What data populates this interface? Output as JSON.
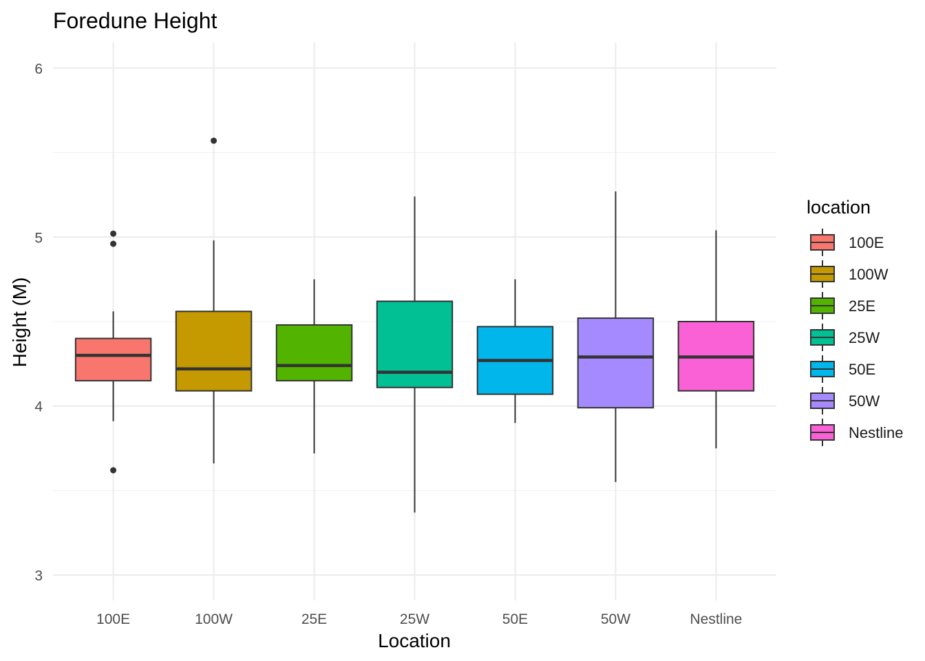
{
  "chart_data": {
    "type": "box",
    "title": "Foredune Height",
    "xlabel": "Location",
    "ylabel": "Height (M)",
    "ylim": [
      2.85,
      6.15
    ],
    "yticks": [
      3,
      4,
      5,
      6
    ],
    "grid": true,
    "legend": {
      "title": "location",
      "position": "right"
    },
    "categories": [
      "100E",
      "100W",
      "25E",
      "25W",
      "50E",
      "50W",
      "Nestline"
    ],
    "colors": [
      "#F8766D",
      "#C49A00",
      "#53B400",
      "#00C094",
      "#00B6EB",
      "#A58AFF",
      "#FB61D7"
    ],
    "boxes": [
      {
        "category": "100E",
        "lower_whisker": 3.91,
        "q1": 4.15,
        "median": 4.3,
        "q3": 4.4,
        "upper_whisker": 4.56,
        "outliers": [
          3.62,
          4.96,
          5.02
        ]
      },
      {
        "category": "100W",
        "lower_whisker": 3.66,
        "q1": 4.09,
        "median": 4.22,
        "q3": 4.56,
        "upper_whisker": 4.98,
        "outliers": [
          5.57
        ]
      },
      {
        "category": "25E",
        "lower_whisker": 3.72,
        "q1": 4.15,
        "median": 4.24,
        "q3": 4.48,
        "upper_whisker": 4.75,
        "outliers": []
      },
      {
        "category": "25W",
        "lower_whisker": 3.37,
        "q1": 4.11,
        "median": 4.2,
        "q3": 4.62,
        "upper_whisker": 5.24,
        "outliers": []
      },
      {
        "category": "50E",
        "lower_whisker": 3.9,
        "q1": 4.07,
        "median": 4.27,
        "q3": 4.47,
        "upper_whisker": 4.75,
        "outliers": []
      },
      {
        "category": "50W",
        "lower_whisker": 3.55,
        "q1": 3.99,
        "median": 4.29,
        "q3": 4.52,
        "upper_whisker": 5.27,
        "outliers": []
      },
      {
        "category": "Nestline",
        "lower_whisker": 3.75,
        "q1": 4.09,
        "median": 4.29,
        "q3": 4.5,
        "upper_whisker": 5.04,
        "outliers": []
      }
    ]
  }
}
